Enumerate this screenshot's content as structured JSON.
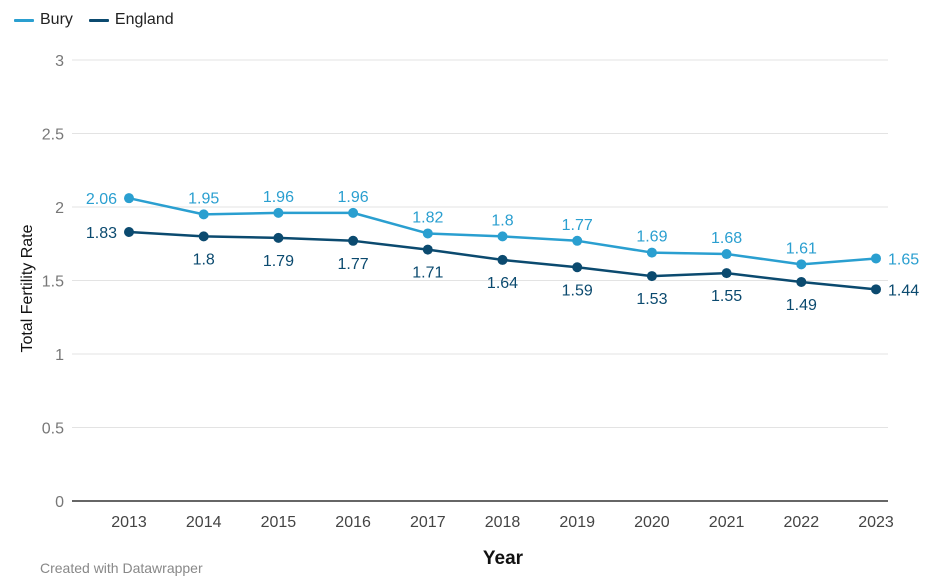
{
  "chart_data": {
    "type": "line",
    "title": "",
    "xlabel": "Year",
    "ylabel": "Total Fertility Rate",
    "x": [
      "2013",
      "2014",
      "2015",
      "2016",
      "2017",
      "2018",
      "2019",
      "2020",
      "2021",
      "2022",
      "2023"
    ],
    "ylim": [
      0,
      3
    ],
    "yticks": [
      "0",
      "0.5",
      "1",
      "1.5",
      "2",
      "2.5",
      "3"
    ],
    "grid": true,
    "legend_position": "top-left",
    "series": [
      {
        "name": "Bury",
        "color": "#2a9fd0",
        "values": [
          2.06,
          1.95,
          1.96,
          1.96,
          1.82,
          1.8,
          1.77,
          1.69,
          1.68,
          1.61,
          1.65
        ],
        "labels": [
          "2.06",
          "1.95",
          "1.96",
          "1.96",
          "1.82",
          "1.8",
          "1.77",
          "1.69",
          "1.68",
          "1.61",
          "1.65"
        ]
      },
      {
        "name": "England",
        "color": "#0b4a6f",
        "values": [
          1.83,
          1.8,
          1.79,
          1.77,
          1.71,
          1.64,
          1.59,
          1.53,
          1.55,
          1.49,
          1.44
        ],
        "labels": [
          "1.83",
          "1.8",
          "1.79",
          "1.77",
          "1.71",
          "1.64",
          "1.59",
          "1.53",
          "1.55",
          "1.49",
          "1.44"
        ]
      }
    ]
  },
  "footer": {
    "credit": "Created with Datawrapper"
  }
}
